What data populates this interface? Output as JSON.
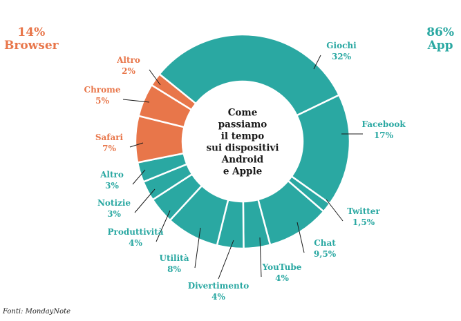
{
  "header": {
    "browser_pct": "14%",
    "browser_label": "Browser",
    "app_pct": "86%",
    "app_label": "App"
  },
  "colors": {
    "app": "#2aa8a2",
    "browser": "#e8764a",
    "separator": "#ffffff",
    "leader": "#1a1a1a",
    "center_text": "#1a1a1a"
  },
  "source": "Fonti: MondayNote",
  "chart_data": {
    "type": "donut",
    "title": "Come passiamo il tempo sui dispositivi Android e Apple",
    "center_lines": [
      "Come",
      "passiamo",
      "il tempo",
      "sui dispositivi",
      "Android",
      "e Apple"
    ],
    "groups": [
      {
        "name": "Browser",
        "value": 14
      },
      {
        "name": "App",
        "value": 86
      }
    ],
    "slices": [
      {
        "name": "Giochi",
        "value": 32,
        "value_label": "32%",
        "group": "App"
      },
      {
        "name": "Facebook",
        "value": 17,
        "value_label": "17%",
        "group": "App"
      },
      {
        "name": "Twitter",
        "value": 1.5,
        "value_label": "1,5%",
        "group": "App"
      },
      {
        "name": "Chat",
        "value": 9.5,
        "value_label": "9,5%",
        "group": "App"
      },
      {
        "name": "YouTube",
        "value": 4,
        "value_label": "4%",
        "group": "App"
      },
      {
        "name": "Divertimento",
        "value": 4,
        "value_label": "4%",
        "group": "App"
      },
      {
        "name": "Utilità",
        "value": 8,
        "value_label": "8%",
        "group": "App"
      },
      {
        "name": "Produttività",
        "value": 4,
        "value_label": "4%",
        "group": "App"
      },
      {
        "name": "Notizie",
        "value": 3,
        "value_label": "3%",
        "group": "App"
      },
      {
        "name": "Altro",
        "value": 3,
        "value_label": "3%",
        "group": "App"
      },
      {
        "name": "Safari",
        "value": 7,
        "value_label": "7%",
        "group": "Browser"
      },
      {
        "name": "Chrome",
        "value": 5,
        "value_label": "5%",
        "group": "Browser"
      },
      {
        "name": "Altro",
        "value": 2,
        "value_label": "2%",
        "group": "Browser"
      }
    ]
  }
}
